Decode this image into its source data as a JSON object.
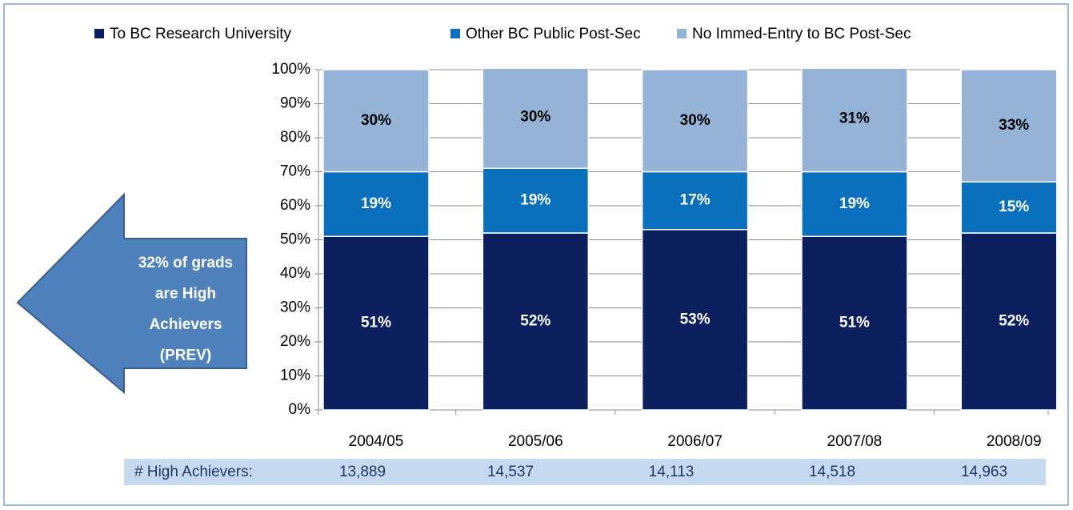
{
  "chart_data": {
    "type": "stacked_bar",
    "categories": [
      "2004/05",
      "2005/06",
      "2006/07",
      "2007/08",
      "2008/09"
    ],
    "series": [
      {
        "name": "To BC Research University",
        "color": "#0c1f5e",
        "label_color": "#ffffff",
        "values": [
          51,
          52,
          53,
          51,
          52
        ],
        "value_labels": [
          "51%",
          "52%",
          "53%",
          "51%",
          "52%"
        ]
      },
      {
        "name": "Other BC Public Post-Sec",
        "color": "#0a70be",
        "label_color": "#ffffff",
        "values": [
          19,
          19,
          17,
          19,
          15
        ],
        "value_labels": [
          "19%",
          "19%",
          "17%",
          "19%",
          "15%"
        ]
      },
      {
        "name": "No Immed-Entry to BC Post-Sec",
        "color": "#95b3d7",
        "label_color": "#000000",
        "values": [
          30,
          30,
          30,
          31,
          33
        ],
        "value_labels": [
          "30%",
          "30%",
          "30%",
          "31%",
          "33%"
        ]
      }
    ],
    "ylim": [
      0,
      100
    ],
    "yticks": [
      {
        "value": 0,
        "label": "0%"
      },
      {
        "value": 10,
        "label": "10%"
      },
      {
        "value": 20,
        "label": "20%"
      },
      {
        "value": 30,
        "label": "30%"
      },
      {
        "value": 40,
        "label": "40%"
      },
      {
        "value": 50,
        "label": "50%"
      },
      {
        "value": 60,
        "label": "60%"
      },
      {
        "value": 70,
        "label": "70%"
      },
      {
        "value": 80,
        "label": "80%"
      },
      {
        "value": 90,
        "label": "90%"
      },
      {
        "value": 100,
        "label": "100%"
      }
    ],
    "grid": true,
    "legend": "top",
    "annotation": [
      "32% of grads",
      "are High",
      "Achievers",
      "(PREV)"
    ],
    "table": {
      "label": "# High Achievers:",
      "cells": [
        "13,889",
        "14,537",
        "14,113",
        "14,518",
        "14,963"
      ]
    }
  }
}
